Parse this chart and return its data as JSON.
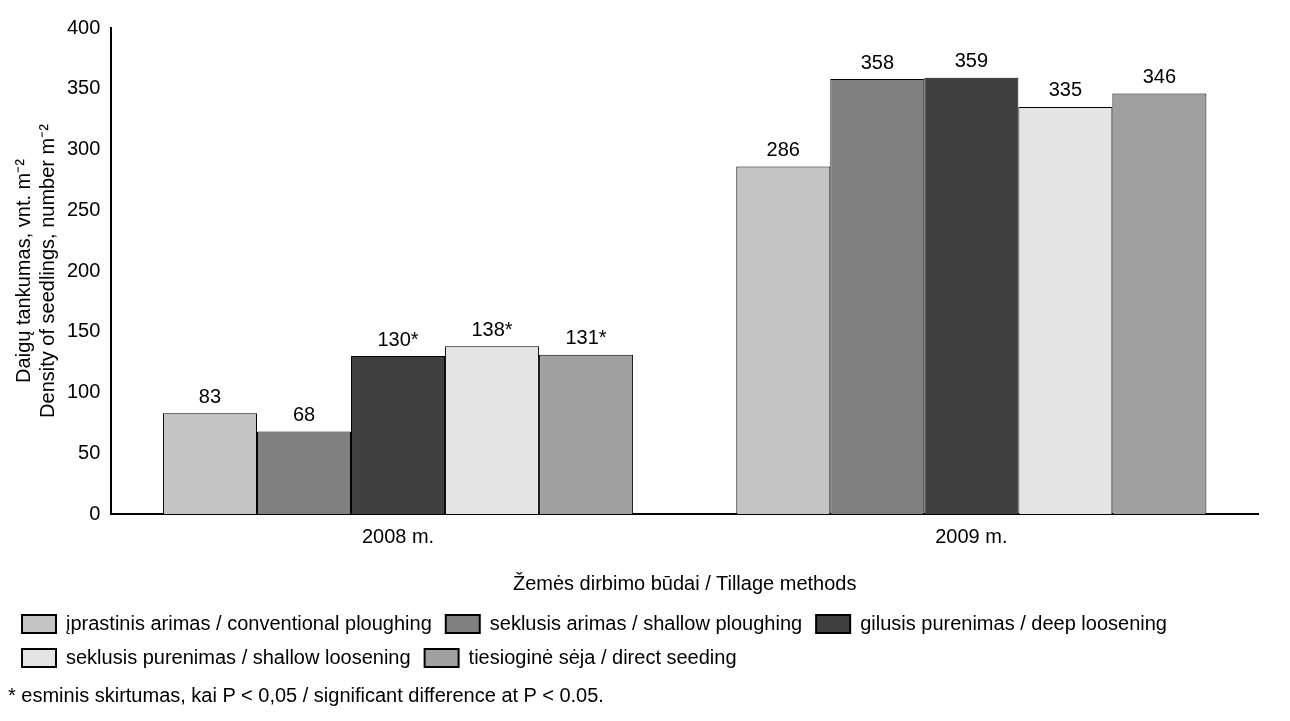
{
  "chart_data": {
    "type": "bar",
    "ylabel": "Daigų tankumas, vnt. m⁻²\nDensity of seedlings, number m⁻²",
    "xlabel": "Žemės dirbimo būdai / Tillage methods",
    "categories": [
      "2008 m.",
      "2009 m."
    ],
    "series": [
      {
        "name": "įprastinis arimas / conventional ploughing",
        "color": "#c4c4c4",
        "values": [
          83,
          286
        ],
        "value_labels": [
          "83",
          "286"
        ]
      },
      {
        "name": "seklusis arimas / shallow ploughing",
        "color": "#808080",
        "values": [
          68,
          358
        ],
        "value_labels": [
          "68",
          "358"
        ]
      },
      {
        "name": "gilusis purenimas / deep loosening",
        "color": "#404040",
        "values": [
          130,
          359
        ],
        "value_labels": [
          "130*",
          "359"
        ]
      },
      {
        "name": "seklusis purenimas / shallow loosening",
        "color": "#e4e4e4",
        "values": [
          138,
          335
        ],
        "value_labels": [
          "138*",
          "335"
        ]
      },
      {
        "name": "tiesioginė sėja / direct seeding",
        "color": "#a0a0a0",
        "values": [
          131,
          346
        ],
        "value_labels": [
          "131*",
          "346"
        ]
      }
    ],
    "ylim": [
      0,
      400
    ],
    "yticks": [
      0,
      50,
      100,
      150,
      200,
      250,
      300,
      350,
      400
    ],
    "grid": false,
    "legend": "bottom",
    "annotations": [
      "* esminis skirtumas, kai P < 0,05 / significant difference at P < 0.05."
    ]
  }
}
